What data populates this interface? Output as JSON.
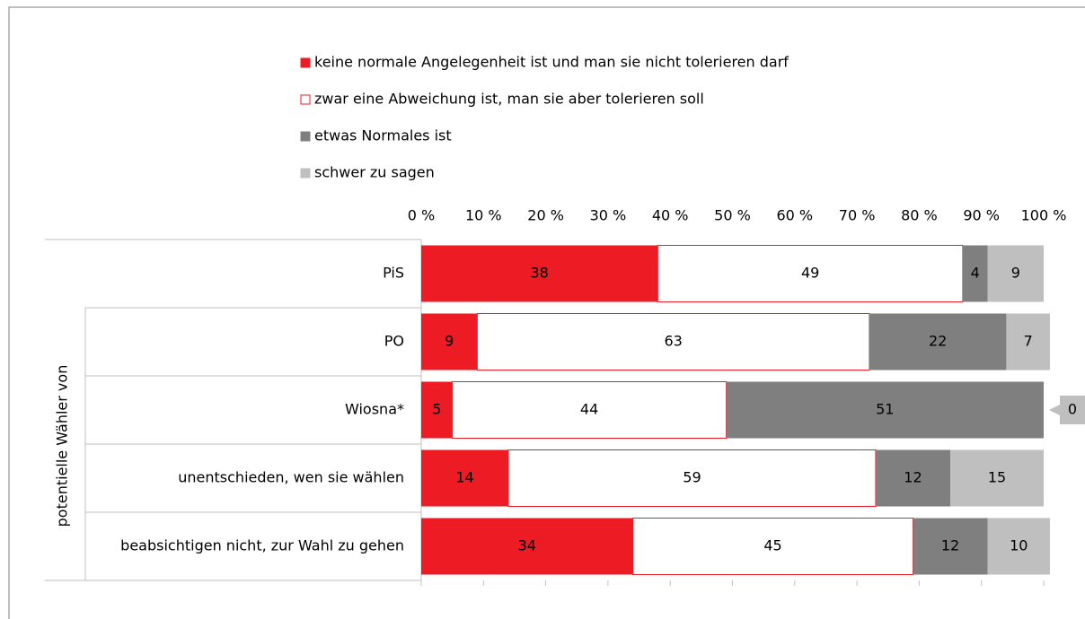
{
  "chart_data": {
    "type": "stacked-barh",
    "ylabel": "potentielle Wähler von",
    "categories": [
      "PiS",
      "PO",
      "Wiosna*",
      "unentschieden, wen sie wählen",
      "beabsichtigen nicht, zur Wahl zu gehen"
    ],
    "series": [
      {
        "name": "keine normale Angelegenheit ist und man sie nicht tolerieren darf",
        "color": "#ed1c24",
        "label_color": "#ffffff",
        "values": [
          38,
          9,
          5,
          14,
          34
        ]
      },
      {
        "name": "zwar eine Abweichung ist, man sie aber tolerieren soll",
        "color": "#ffffff",
        "stroke": "#ed1c24",
        "label_color": "#000000",
        "values": [
          49,
          63,
          44,
          59,
          45
        ]
      },
      {
        "name": "etwas Normales ist",
        "color": "#7f7f7f",
        "label_color": "#ffffff",
        "values": [
          4,
          22,
          51,
          12,
          12
        ]
      },
      {
        "name": "schwer zu sagen",
        "color": "#bfbfbf",
        "label_color": "#000000",
        "values": [
          9,
          7,
          0,
          15,
          10
        ]
      }
    ],
    "xlim": [
      0,
      100
    ],
    "xticks": [
      {
        "value": 0,
        "label": "0 %"
      },
      {
        "value": 10,
        "label": "10 %"
      },
      {
        "value": 20,
        "label": "20 %"
      },
      {
        "value": 30,
        "label": "30 %"
      },
      {
        "value": 40,
        "label": "40 %"
      },
      {
        "value": 50,
        "label": "50 %"
      },
      {
        "value": 60,
        "label": "60 %"
      },
      {
        "value": 70,
        "label": "70 %"
      },
      {
        "value": 80,
        "label": "80 %"
      },
      {
        "value": 90,
        "label": "90 %"
      },
      {
        "value": 100,
        "label": "100 %"
      }
    ],
    "legend": "top"
  }
}
